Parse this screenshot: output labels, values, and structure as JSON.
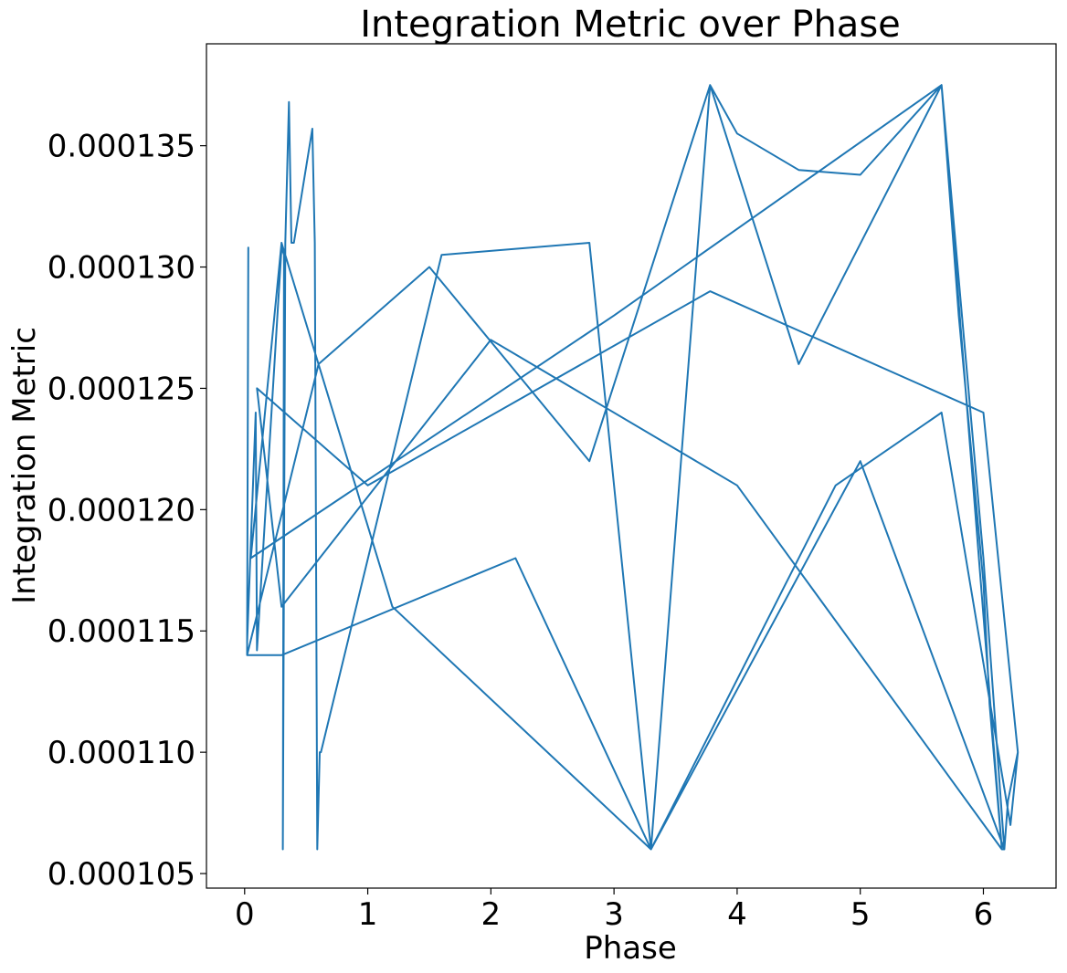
{
  "chart_data": {
    "type": "line",
    "title": "Integration Metric over Phase",
    "xlabel": "Phase",
    "ylabel": "Integration Metric",
    "xlim": [
      -0.31,
      6.59
    ],
    "ylim": [
      0.0001044,
      0.0001392
    ],
    "x_ticks": [
      0,
      1,
      2,
      3,
      4,
      5,
      6
    ],
    "x_tick_labels": [
      "0",
      "1",
      "2",
      "3",
      "4",
      "5",
      "6"
    ],
    "y_ticks": [
      0.000105,
      0.00011,
      0.000115,
      0.00012,
      0.000125,
      0.00013,
      0.000135
    ],
    "y_tick_labels": [
      "0.000105",
      "0.000110",
      "0.000115",
      "0.000120",
      "0.000125",
      "0.000130",
      "0.000135"
    ],
    "grid": false,
    "series": [
      {
        "color": "#1f77b4",
        "x": [
          0.02,
          0.03,
          0.02,
          0.09,
          0.1,
          0.3,
          0.32,
          0.31,
          0.33,
          0.36,
          0.38,
          0.4,
          0.55,
          0.57,
          0.59,
          0.61,
          0.62,
          1.6,
          2.8,
          3.3,
          3.78,
          4.0,
          4.5,
          5.0,
          5.66,
          5.8,
          6.0,
          6.05,
          6.15,
          6.17,
          6.2,
          6.28,
          6.22,
          5.66,
          4.8,
          3.3,
          2.2,
          0.3,
          0.02,
          0.6,
          1.5,
          2.8,
          3.78,
          4.5,
          5.66,
          6.0,
          6.17,
          5.0,
          3.3,
          1.2,
          0.3,
          0.05,
          3.0,
          5.66,
          6.15,
          4.0,
          2.0,
          0.3,
          0.1,
          1.0,
          3.78,
          6.0,
          6.28
        ],
        "y": [
          0.000114,
          0.0001308,
          0.0001145,
          0.000124,
          0.0001142,
          0.0001308,
          0.0001305,
          0.000106,
          0.000131,
          0.0001368,
          0.000131,
          0.000131,
          0.0001357,
          0.000131,
          0.000106,
          0.00011,
          0.00011,
          0.0001305,
          0.000131,
          0.000106,
          0.0001375,
          0.0001355,
          0.000134,
          0.0001338,
          0.0001375,
          0.000128,
          0.000117,
          0.000112,
          0.000106,
          0.000106,
          0.000108,
          0.00011,
          0.000107,
          0.000124,
          0.000121,
          0.000106,
          0.000118,
          0.000114,
          0.000114,
          0.000126,
          0.00013,
          0.000122,
          0.0001375,
          0.000126,
          0.0001375,
          0.000118,
          0.000106,
          0.000122,
          0.000106,
          0.000116,
          0.000131,
          0.000118,
          0.000128,
          0.0001375,
          0.000106,
          0.000121,
          0.000127,
          0.000116,
          0.000125,
          0.000121,
          0.000129,
          0.000124,
          0.00011
        ]
      }
    ]
  }
}
